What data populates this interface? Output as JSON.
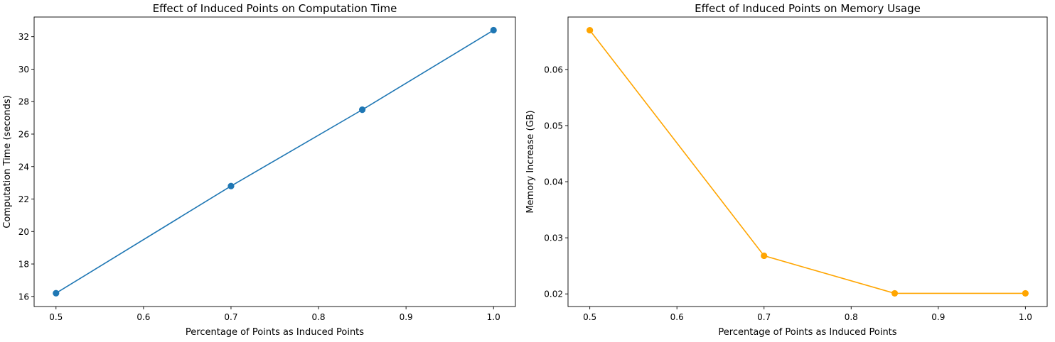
{
  "chart_data": [
    {
      "type": "line",
      "title": "Effect of Induced Points on Computation Time",
      "xlabel": "Percentage of Points as Induced Points",
      "ylabel": "Computation Time (seconds)",
      "xlim": [
        0.475,
        1.025
      ],
      "ylim": [
        15.38,
        33.21
      ],
      "xticks": [
        0.5,
        0.6,
        0.7,
        0.8,
        0.9,
        1.0
      ],
      "xtick_labels": [
        "0.5",
        "0.6",
        "0.7",
        "0.8",
        "0.9",
        "1.0"
      ],
      "yticks": [
        16,
        18,
        20,
        22,
        24,
        26,
        28,
        30,
        32
      ],
      "ytick_labels": [
        "16",
        "18",
        "20",
        "22",
        "24",
        "26",
        "28",
        "30",
        "32"
      ],
      "grid": false,
      "series": [
        {
          "x": [
            0.5,
            0.7,
            0.85,
            1.0
          ],
          "values": [
            16.2,
            22.8,
            27.5,
            32.4
          ],
          "color": "#1f77b4",
          "marker": "o"
        }
      ]
    },
    {
      "type": "line",
      "title": "Effect of Induced Points on Memory Usage",
      "xlabel": "Percentage of Points as Induced Points",
      "ylabel": "Memory Increase (GB)",
      "xlim": [
        0.475,
        1.025
      ],
      "ylim": [
        0.01775,
        0.06935
      ],
      "xticks": [
        0.5,
        0.6,
        0.7,
        0.8,
        0.9,
        1.0
      ],
      "xtick_labels": [
        "0.5",
        "0.6",
        "0.7",
        "0.8",
        "0.9",
        "1.0"
      ],
      "yticks": [
        0.02,
        0.03,
        0.04,
        0.05,
        0.06
      ],
      "ytick_labels": [
        "0.02",
        "0.03",
        "0.04",
        "0.05",
        "0.06"
      ],
      "grid": false,
      "series": [
        {
          "x": [
            0.5,
            0.7,
            0.85,
            1.0
          ],
          "values": [
            0.067,
            0.0268,
            0.0201,
            0.0201
          ],
          "color": "#ffa500",
          "marker": "o"
        }
      ]
    }
  ]
}
